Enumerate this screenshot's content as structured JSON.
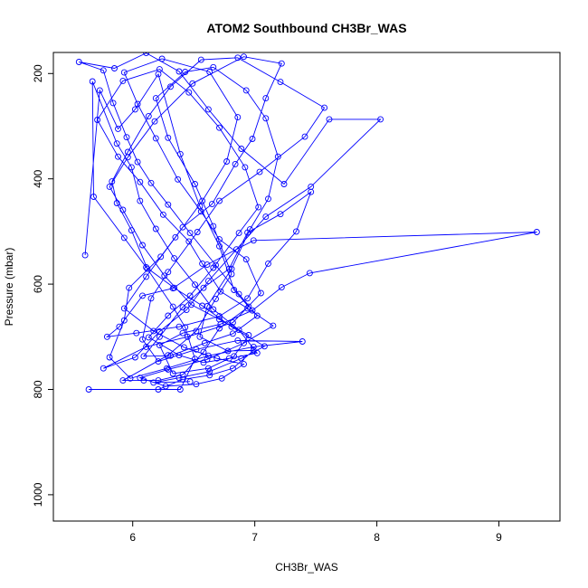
{
  "chart_data": {
    "type": "line",
    "title": "ATOM2 Southbound CH3Br_WAS",
    "xlabel": "CH3Br_WAS",
    "ylabel": "Pressure (mbar)",
    "xlim": [
      5.35,
      9.5
    ],
    "ylim": [
      1050,
      160
    ],
    "y_reversed": true,
    "x_ticks": [
      6,
      7,
      8,
      9
    ],
    "y_ticks": [
      200,
      400,
      600,
      800,
      1000
    ],
    "grid": false,
    "legend": "none",
    "colors": {
      "series": "#0000ff",
      "axes": "#000000"
    },
    "marker": "open-circle",
    "series": [
      {
        "values": [
          [
            5.61,
            545
          ],
          [
            5.73,
            232
          ],
          [
            5.88,
            305
          ],
          [
            6.02,
            268
          ],
          [
            6.21,
            201
          ],
          [
            6.39,
            353
          ],
          [
            6.55,
            452
          ],
          [
            6.71,
            528
          ],
          [
            6.83,
            611
          ],
          [
            6.95,
            643
          ],
          [
            6.71,
            684
          ],
          [
            6.58,
            729
          ],
          [
            6.41,
            772
          ],
          [
            6.21,
            783
          ],
          [
            6.09,
            783
          ],
          [
            5.92,
            783
          ],
          [
            6.29,
            735
          ],
          [
            6.52,
            689
          ],
          [
            6.68,
            628
          ],
          [
            6.81,
            581
          ],
          [
            6.66,
            490
          ],
          [
            6.51,
            410
          ],
          [
            6.29,
            322
          ],
          [
            6.19,
            247
          ],
          [
            6.43,
            197
          ],
          [
            6.66,
            188
          ],
          [
            6.93,
            232
          ],
          [
            7.09,
            285
          ],
          [
            7.19,
            358
          ],
          [
            7.11,
            438
          ],
          [
            6.96,
            496
          ],
          [
            6.81,
            571
          ],
          [
            6.61,
            642
          ],
          [
            6.55,
            700
          ],
          [
            6.78,
            727
          ],
          [
            6.99,
            726
          ],
          [
            6.82,
            760
          ],
          [
            6.63,
            773
          ],
          [
            6.41,
            781
          ],
          [
            6.21,
            800
          ],
          [
            5.64,
            800
          ],
          [
            6.39,
            800
          ],
          [
            6.51,
            742
          ],
          [
            6.43,
            682
          ],
          [
            6.33,
            643
          ],
          [
            6.12,
            571
          ],
          [
            5.99,
            498
          ],
          [
            5.87,
            446
          ],
          [
            5.83,
            405
          ],
          [
            5.96,
            349
          ],
          [
            6.13,
            281
          ],
          [
            6.31,
            225
          ],
          [
            6.56,
            174
          ],
          [
            6.86,
            170
          ],
          [
            7.21,
            216
          ],
          [
            7.57,
            265
          ],
          [
            7.41,
            320
          ],
          [
            7.04,
            387
          ],
          [
            6.71,
            442
          ],
          [
            6.53,
            501
          ],
          [
            6.29,
            577
          ],
          [
            6.15,
            627
          ],
          [
            6.08,
            705
          ],
          [
            6.21,
            747
          ],
          [
            6.52,
            724
          ],
          [
            6.86,
            707
          ],
          [
            7.39,
            709
          ],
          [
            6.99,
            719
          ],
          [
            6.62,
            736
          ],
          [
            6.28,
            760
          ],
          [
            5.98,
            779
          ],
          [
            5.81,
            739
          ],
          [
            5.93,
            669
          ],
          [
            5.97,
            607
          ],
          [
            6.23,
            548
          ],
          [
            6.41,
            492
          ],
          [
            6.65,
            448
          ],
          [
            6.84,
            372
          ],
          [
            6.98,
            324
          ],
          [
            7.09,
            247
          ],
          [
            7.22,
            181
          ],
          [
            6.91,
            168
          ],
          [
            6.49,
            219
          ],
          [
            6.18,
            291
          ],
          [
            5.96,
            359
          ],
          [
            5.81,
            415
          ],
          [
            5.92,
            459
          ],
          [
            6.08,
            526
          ],
          [
            6.26,
            584
          ],
          [
            6.48,
            639
          ],
          [
            6.71,
            667
          ],
          [
            6.95,
            697
          ],
          [
            6.83,
            737
          ],
          [
            6.62,
            760
          ],
          [
            6.33,
            770
          ],
          [
            6.22,
            716
          ],
          [
            6.41,
            693
          ],
          [
            6.72,
            676
          ],
          [
            6.98,
            650
          ],
          [
            7.22,
            606
          ],
          [
            7.45,
            579
          ],
          [
            9.31,
            501
          ],
          [
            6.99,
            517
          ],
          [
            6.61,
            563
          ],
          [
            6.33,
            608
          ],
          [
            6.08,
            622
          ],
          [
            5.89,
            681
          ],
          [
            5.79,
            700
          ],
          [
            6.03,
            693
          ],
          [
            6.38,
            681
          ],
          [
            6.71,
            661
          ],
          [
            6.94,
            627
          ],
          [
            7.11,
            561
          ],
          [
            7.34,
            500
          ],
          [
            7.46,
            425
          ],
          [
            7.21,
            467
          ],
          [
            6.94,
            502
          ],
          [
            6.79,
            571
          ],
          [
            6.58,
            607
          ],
          [
            6.41,
            644
          ],
          [
            6.22,
            700
          ],
          [
            6.09,
            737
          ],
          [
            6.31,
            736
          ],
          [
            6.59,
            712
          ],
          [
            6.82,
            694
          ],
          [
            7.02,
            660
          ],
          [
            6.87,
            619
          ],
          [
            6.68,
            564
          ],
          [
            6.47,
            503
          ],
          [
            6.29,
            449
          ],
          [
            6.15,
            408
          ],
          [
            6.04,
            368
          ],
          [
            5.95,
            321
          ],
          [
            5.84,
            256
          ],
          [
            5.76,
            194
          ],
          [
            5.56,
            178
          ],
          [
            5.85,
            190
          ],
          [
            6.11,
            161
          ],
          [
            6.38,
            196
          ],
          [
            6.62,
            268
          ],
          [
            6.89,
            343
          ],
          [
            7.24,
            410
          ],
          [
            7.61,
            287
          ],
          [
            8.03,
            287
          ],
          [
            7.46,
            415
          ],
          [
            7.09,
            472
          ],
          [
            6.85,
            534
          ],
          [
            6.62,
            594
          ],
          [
            6.44,
            649
          ],
          [
            6.22,
            690
          ],
          [
            6.02,
            739
          ],
          [
            5.76,
            760
          ],
          [
            6.11,
            719
          ],
          [
            6.45,
            700
          ],
          [
            6.82,
            673
          ],
          [
            7.05,
            617
          ],
          [
            6.93,
            553
          ],
          [
            6.71,
            515
          ],
          [
            6.56,
            462
          ],
          [
            6.37,
            401
          ],
          [
            6.19,
            323
          ],
          [
            6.04,
            258
          ],
          [
            5.93,
            198
          ],
          [
            6.24,
            172
          ],
          [
            6.63,
            197
          ],
          [
            6.86,
            283
          ],
          [
            6.77,
            367
          ],
          [
            6.57,
            442
          ],
          [
            6.35,
            511
          ],
          [
            6.11,
            586
          ],
          [
            5.93,
            646
          ],
          [
            6.17,
            689
          ],
          [
            6.42,
            720
          ],
          [
            6.69,
            741
          ],
          [
            6.91,
            752
          ],
          [
            6.73,
            779
          ],
          [
            6.52,
            790
          ],
          [
            6.27,
            794
          ],
          [
            6.06,
            778
          ],
          [
            6.29,
            762
          ],
          [
            6.61,
            743
          ],
          [
            6.91,
            712
          ],
          [
            7.15,
            679
          ],
          [
            6.94,
            646
          ],
          [
            6.72,
            614
          ],
          [
            6.57,
            561
          ],
          [
            6.46,
            519
          ],
          [
            6.25,
            468
          ],
          [
            6.06,
            406
          ],
          [
            5.88,
            358
          ],
          [
            5.71,
            288
          ],
          [
            5.92,
            214
          ],
          [
            6.22,
            192
          ],
          [
            6.46,
            236
          ],
          [
            6.71,
            303
          ],
          [
            6.92,
            378
          ],
          [
            7.03,
            454
          ],
          [
            6.87,
            503
          ],
          [
            6.66,
            569
          ],
          [
            6.47,
            622
          ],
          [
            6.29,
            660
          ],
          [
            6.13,
            701
          ],
          [
            6.38,
            735
          ],
          [
            6.58,
            749
          ],
          [
            6.79,
            741
          ],
          [
            7.02,
            731
          ],
          [
            6.87,
            687
          ],
          [
            6.66,
            648
          ],
          [
            6.51,
            601
          ],
          [
            6.34,
            551
          ],
          [
            6.19,
            495
          ],
          [
            6.06,
            442
          ],
          [
            5.99,
            378
          ],
          [
            5.87,
            333
          ],
          [
            5.67,
            215
          ],
          [
            5.68,
            434
          ],
          [
            5.93,
            512
          ],
          [
            6.11,
            568
          ],
          [
            6.34,
            607
          ],
          [
            6.57,
            641
          ],
          [
            6.81,
            681
          ],
          [
            7.08,
            718
          ],
          [
            6.89,
            741
          ],
          [
            6.63,
            766
          ],
          [
            6.38,
            778
          ],
          [
            6.17,
            787
          ],
          [
            6.47,
            785
          ]
        ]
      }
    ]
  }
}
